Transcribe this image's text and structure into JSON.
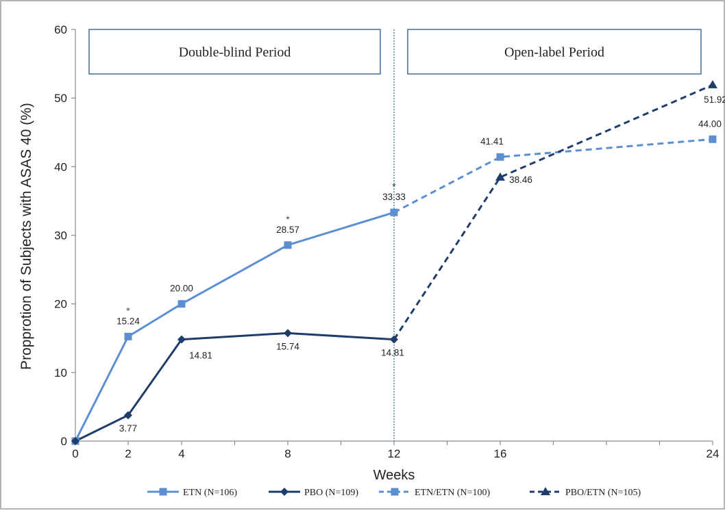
{
  "chart_data": {
    "type": "line",
    "xlabel": "Weeks",
    "ylabel": "Propprotion of Subjects with ASAS 40 (%)",
    "xlim": [
      0,
      24
    ],
    "ylim": [
      0,
      60
    ],
    "x_ticks": [
      "0",
      "2",
      "4",
      "8",
      "12",
      "16",
      "24"
    ],
    "y_ticks": [
      "0",
      "10",
      "20",
      "30",
      "40",
      "50",
      "60"
    ],
    "grid": false,
    "legend_position": "bottom",
    "periods": [
      {
        "label": "Double-blind Period"
      },
      {
        "label": "Open-label Period"
      }
    ],
    "divider_x": 12,
    "series": [
      {
        "name": "ETN (N=106)",
        "color": "#5b8fd0",
        "dashed": false,
        "marker": "square",
        "points": [
          {
            "x": 0,
            "y": 0,
            "label": ""
          },
          {
            "x": 2,
            "y": 15.24,
            "label": "15.24",
            "star": "*"
          },
          {
            "x": 4,
            "y": 20.0,
            "label": "20.00"
          },
          {
            "x": 8,
            "y": 28.57,
            "label": "28.57",
            "star": "*"
          },
          {
            "x": 12,
            "y": 33.33,
            "label": "33.33",
            "star": "*"
          }
        ]
      },
      {
        "name": "PBO (N=109)",
        "color": "#1f3d6b",
        "dashed": false,
        "marker": "diamond",
        "points": [
          {
            "x": 0,
            "y": 0,
            "label": ""
          },
          {
            "x": 2,
            "y": 3.77,
            "label": "3.77"
          },
          {
            "x": 4,
            "y": 14.81,
            "label": "14.81"
          },
          {
            "x": 8,
            "y": 15.74,
            "label": "15.74"
          },
          {
            "x": 12,
            "y": 14.81,
            "label": "14.81"
          }
        ]
      },
      {
        "name": "ETN/ETN (N=100)",
        "color": "#5b8fd0",
        "dashed": true,
        "marker": "square",
        "points": [
          {
            "x": 12,
            "y": 33.33,
            "label": ""
          },
          {
            "x": 16,
            "y": 41.41,
            "label": "41.41"
          },
          {
            "x": 24,
            "y": 44.0,
            "label": "44.00"
          }
        ]
      },
      {
        "name": "PBO/ETN (N=105)",
        "color": "#1f3d6b",
        "dashed": true,
        "marker": "triangle",
        "points": [
          {
            "x": 12,
            "y": 14.81,
            "label": ""
          },
          {
            "x": 16,
            "y": 38.46,
            "label": "38.46"
          },
          {
            "x": 24,
            "y": 51.92,
            "label": "51.92"
          }
        ]
      }
    ]
  }
}
